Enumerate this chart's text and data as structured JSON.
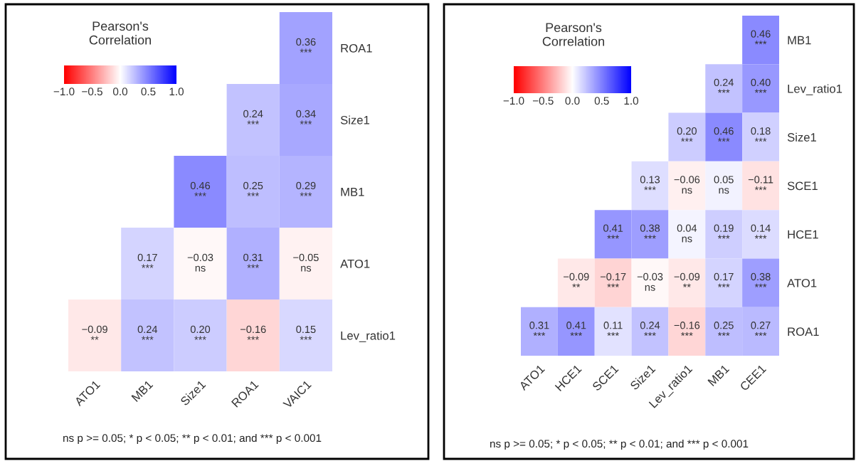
{
  "chart_data": [
    {
      "type": "heatmap",
      "clabel": "Pearson's\nCorrelation",
      "colors": [
        "#ff0000",
        "#ffffff",
        "#0000ff"
      ],
      "categories": [
        "ATO1",
        "MB1",
        "Size1",
        "ROA1",
        "VAIC1"
      ],
      "y_categories": [
        "ROA1",
        "Size1",
        "MB1",
        "ATO1",
        "Lev_ratio1"
      ],
      "cells": [
        [
          null,
          null,
          null,
          null,
          0.36
        ],
        [
          null,
          null,
          null,
          0.24,
          0.34
        ],
        [
          null,
          null,
          0.46,
          0.25,
          0.29
        ],
        [
          null,
          0.17,
          -0.03,
          0.31,
          -0.05
        ],
        [
          -0.09,
          0.24,
          0.2,
          -0.16,
          0.15
        ]
      ],
      "cell_labels": [
        [
          null,
          null,
          null,
          null,
          "0.36\n***"
        ],
        [
          null,
          null,
          null,
          "0.24\n***",
          "0.34\n***"
        ],
        [
          null,
          null,
          "0.46\n***",
          "0.25\n***",
          "0.29\n***"
        ],
        [
          null,
          "0.17\n***",
          "−0.03\nns",
          "0.31\n***",
          "−0.05\nns"
        ],
        [
          "−0.09\n**",
          "0.24\n***",
          "0.20\n***",
          "−0.16\n***",
          "0.15\n***"
        ]
      ],
      "clim": [
        -1,
        1
      ],
      "cticks": [
        {
          "value": -1,
          "label": "−1.0"
        },
        {
          "value": -0.5,
          "label": "−0.5"
        },
        {
          "value": 0,
          "label": "0.0"
        },
        {
          "value": 0.5,
          "label": "0.5"
        },
        {
          "value": 1,
          "label": "1.0"
        }
      ],
      "annotations": [
        "ns p >= 0.05; * p < 0.05; ** p < 0.01; and *** p < 0.001"
      ]
    },
    {
      "type": "heatmap",
      "clabel": "Pearson's\nCorrelation",
      "colors": [
        "#ff0000",
        "#ffffff",
        "#0000ff"
      ],
      "categories": [
        "ATO1",
        "HCE1",
        "SCE1",
        "Size1",
        "Lev_ratio1",
        "MB1",
        "CEE1"
      ],
      "y_categories": [
        "MB1",
        "Lev_ratio1",
        "Size1",
        "SCE1",
        "HCE1",
        "ATO1",
        "ROA1"
      ],
      "cells": [
        [
          null,
          null,
          null,
          null,
          null,
          null,
          0.46
        ],
        [
          null,
          null,
          null,
          null,
          null,
          0.24,
          0.4
        ],
        [
          null,
          null,
          null,
          null,
          0.2,
          0.46,
          0.18
        ],
        [
          null,
          null,
          null,
          0.13,
          -0.06,
          0.05,
          -0.11
        ],
        [
          null,
          null,
          0.41,
          0.38,
          0.04,
          0.19,
          0.14
        ],
        [
          null,
          -0.09,
          -0.17,
          -0.03,
          -0.09,
          0.17,
          0.38
        ],
        [
          0.31,
          0.41,
          0.11,
          0.24,
          -0.16,
          0.25,
          0.27
        ]
      ],
      "cell_labels": [
        [
          null,
          null,
          null,
          null,
          null,
          null,
          "0.46\n***"
        ],
        [
          null,
          null,
          null,
          null,
          null,
          "0.24\n***",
          "0.40\n***"
        ],
        [
          null,
          null,
          null,
          null,
          "0.20\n***",
          "0.46\n***",
          "0.18\n***"
        ],
        [
          null,
          null,
          null,
          "0.13\n***",
          "−0.06\nns",
          "0.05\nns",
          "−0.11\n***"
        ],
        [
          null,
          null,
          "0.41\n***",
          "0.38\n***",
          "0.04\nns",
          "0.19\n***",
          "0.14\n***"
        ],
        [
          null,
          "−0.09\n**",
          "−0.17\n***",
          "−0.03\nns",
          "−0.09\n**",
          "0.17\n***",
          "0.38\n***"
        ],
        [
          "0.31\n***",
          "0.41\n***",
          "0.11\n***",
          "0.24\n***",
          "−0.16\n***",
          "0.25\n***",
          "0.27\n***"
        ]
      ],
      "clim": [
        -1,
        1
      ],
      "cticks": [
        {
          "value": -1,
          "label": "−1.0"
        },
        {
          "value": -0.5,
          "label": "−0.5"
        },
        {
          "value": 0,
          "label": "0.0"
        },
        {
          "value": 0.5,
          "label": "0.5"
        },
        {
          "value": 1,
          "label": "1.0"
        }
      ],
      "annotations": [
        "ns p >= 0.05; * p < 0.05; ** p < 0.01; and *** p < 0.001"
      ]
    }
  ]
}
